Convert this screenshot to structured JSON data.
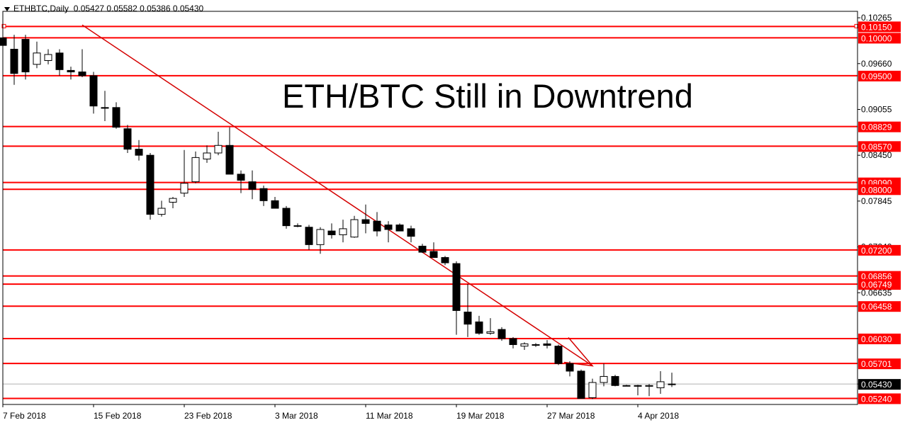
{
  "header": {
    "symbol": "ETHBTC,Daily",
    "ohlc": "0.05427 0.05582 0.05386 0.05430"
  },
  "headline": "ETH/BTC Still in Downtrend",
  "colors": {
    "level": "#ff0000",
    "trendline": "#d40000",
    "candle_up": "#ffffff",
    "candle_down": "#000000",
    "current_price_bg": "#000000"
  },
  "chart_data": {
    "type": "candlestick",
    "instrument": "ETHBTC",
    "timeframe": "Daily",
    "price_axis": {
      "min": 0.0516,
      "max": 0.1035,
      "tick_labels": [
        "0.10265",
        "0.09660",
        "0.09055",
        "0.08450",
        "0.07845",
        "0.07240",
        "0.06635",
        "0.06030",
        "0.05430"
      ]
    },
    "time_axis_labels": [
      "7 Feb 2018",
      "15 Feb 2018",
      "23 Feb 2018",
      "3 Mar 2018",
      "11 Mar 2018",
      "19 Mar 2018",
      "27 Mar 2018",
      "4 Apr 2018"
    ],
    "time_axis_label_index": [
      0,
      8,
      16,
      24,
      32,
      40,
      48,
      56
    ],
    "levels": [
      "0.10150",
      "0.10000",
      "0.09500",
      "0.08829",
      "0.08570",
      "0.08090",
      "0.08000",
      "0.07200",
      "0.06856",
      "0.06749",
      "0.06458",
      "0.06030",
      "0.05701",
      "0.05240"
    ],
    "current_price": "0.05430",
    "candles": [
      {
        "o": 0.1,
        "h": 0.1012,
        "l": 0.0985,
        "c": 0.099
      },
      {
        "o": 0.0985,
        "h": 0.1004,
        "l": 0.0938,
        "c": 0.0953
      },
      {
        "o": 0.0998,
        "h": 0.1004,
        "l": 0.0945,
        "c": 0.0955
      },
      {
        "o": 0.0965,
        "h": 0.0995,
        "l": 0.096,
        "c": 0.098
      },
      {
        "o": 0.097,
        "h": 0.0985,
        "l": 0.0965,
        "c": 0.0978
      },
      {
        "o": 0.098,
        "h": 0.0985,
        "l": 0.095,
        "c": 0.0958
      },
      {
        "o": 0.0957,
        "h": 0.0962,
        "l": 0.0945,
        "c": 0.0955
      },
      {
        "o": 0.0955,
        "h": 0.0985,
        "l": 0.0948,
        "c": 0.095
      },
      {
        "o": 0.095,
        "h": 0.0955,
        "l": 0.09,
        "c": 0.091
      },
      {
        "o": 0.0908,
        "h": 0.093,
        "l": 0.089,
        "c": 0.0907
      },
      {
        "o": 0.0908,
        "h": 0.0915,
        "l": 0.088,
        "c": 0.0882
      },
      {
        "o": 0.088,
        "h": 0.0885,
        "l": 0.0848,
        "c": 0.0853
      },
      {
        "o": 0.0853,
        "h": 0.0865,
        "l": 0.0838,
        "c": 0.0845
      },
      {
        "o": 0.0845,
        "h": 0.0848,
        "l": 0.076,
        "c": 0.0767
      },
      {
        "o": 0.0767,
        "h": 0.0785,
        "l": 0.0764,
        "c": 0.0775
      },
      {
        "o": 0.0783,
        "h": 0.079,
        "l": 0.0775,
        "c": 0.0788
      },
      {
        "o": 0.0795,
        "h": 0.0852,
        "l": 0.079,
        "c": 0.0808
      },
      {
        "o": 0.081,
        "h": 0.085,
        "l": 0.0808,
        "c": 0.0842
      },
      {
        "o": 0.084,
        "h": 0.0858,
        "l": 0.0835,
        "c": 0.0848
      },
      {
        "o": 0.0848,
        "h": 0.0876,
        "l": 0.0845,
        "c": 0.0858
      },
      {
        "o": 0.0858,
        "h": 0.0882,
        "l": 0.082,
        "c": 0.082
      },
      {
        "o": 0.082,
        "h": 0.0825,
        "l": 0.0795,
        "c": 0.0812
      },
      {
        "o": 0.081,
        "h": 0.0825,
        "l": 0.0787,
        "c": 0.08
      },
      {
        "o": 0.0801,
        "h": 0.0805,
        "l": 0.0778,
        "c": 0.0785
      },
      {
        "o": 0.0785,
        "h": 0.079,
        "l": 0.0775,
        "c": 0.0775
      },
      {
        "o": 0.0775,
        "h": 0.0778,
        "l": 0.0748,
        "c": 0.0752
      },
      {
        "o": 0.0752,
        "h": 0.0755,
        "l": 0.075,
        "c": 0.0752
      },
      {
        "o": 0.075,
        "h": 0.0753,
        "l": 0.072,
        "c": 0.0727
      },
      {
        "o": 0.0727,
        "h": 0.075,
        "l": 0.0715,
        "c": 0.0747
      },
      {
        "o": 0.0745,
        "h": 0.0755,
        "l": 0.0735,
        "c": 0.074
      },
      {
        "o": 0.074,
        "h": 0.076,
        "l": 0.073,
        "c": 0.0748
      },
      {
        "o": 0.0737,
        "h": 0.0765,
        "l": 0.0736,
        "c": 0.076
      },
      {
        "o": 0.076,
        "h": 0.078,
        "l": 0.0742,
        "c": 0.0755
      },
      {
        "o": 0.0758,
        "h": 0.077,
        "l": 0.0738,
        "c": 0.0745
      },
      {
        "o": 0.0753,
        "h": 0.0758,
        "l": 0.073,
        "c": 0.0747
      },
      {
        "o": 0.0753,
        "h": 0.0755,
        "l": 0.0745,
        "c": 0.0745
      },
      {
        "o": 0.0748,
        "h": 0.0752,
        "l": 0.073,
        "c": 0.0738
      },
      {
        "o": 0.0725,
        "h": 0.0728,
        "l": 0.0716,
        "c": 0.0717
      },
      {
        "o": 0.0718,
        "h": 0.073,
        "l": 0.071,
        "c": 0.071
      },
      {
        "o": 0.071,
        "h": 0.0712,
        "l": 0.07,
        "c": 0.0703
      },
      {
        "o": 0.0702,
        "h": 0.0705,
        "l": 0.0608,
        "c": 0.064
      },
      {
        "o": 0.0638,
        "h": 0.0675,
        "l": 0.0605,
        "c": 0.0622
      },
      {
        "o": 0.0625,
        "h": 0.0633,
        "l": 0.0608,
        "c": 0.061
      },
      {
        "o": 0.061,
        "h": 0.063,
        "l": 0.0608,
        "c": 0.0612
      },
      {
        "o": 0.0615,
        "h": 0.0618,
        "l": 0.06,
        "c": 0.0603
      },
      {
        "o": 0.0603,
        "h": 0.0605,
        "l": 0.059,
        "c": 0.0595
      },
      {
        "o": 0.0593,
        "h": 0.0598,
        "l": 0.0588,
        "c": 0.0596
      },
      {
        "o": 0.0595,
        "h": 0.0597,
        "l": 0.0592,
        "c": 0.0595
      },
      {
        "o": 0.0596,
        "h": 0.0601,
        "l": 0.059,
        "c": 0.0594
      },
      {
        "o": 0.0593,
        "h": 0.0595,
        "l": 0.0568,
        "c": 0.057
      },
      {
        "o": 0.057,
        "h": 0.0573,
        "l": 0.0553,
        "c": 0.056
      },
      {
        "o": 0.056,
        "h": 0.0562,
        "l": 0.0524,
        "c": 0.0524
      },
      {
        "o": 0.0525,
        "h": 0.055,
        "l": 0.0523,
        "c": 0.0545
      },
      {
        "o": 0.0545,
        "h": 0.057,
        "l": 0.054,
        "c": 0.0553
      },
      {
        "o": 0.0553,
        "h": 0.0555,
        "l": 0.054,
        "c": 0.0541
      },
      {
        "o": 0.0541,
        "h": 0.0542,
        "l": 0.054,
        "c": 0.0541
      },
      {
        "o": 0.0541,
        "h": 0.0542,
        "l": 0.0528,
        "c": 0.054
      },
      {
        "o": 0.054,
        "h": 0.0543,
        "l": 0.0527,
        "c": 0.0541
      },
      {
        "o": 0.0538,
        "h": 0.056,
        "l": 0.053,
        "c": 0.0546
      },
      {
        "o": 0.0543,
        "h": 0.0558,
        "l": 0.0539,
        "c": 0.0543
      }
    ],
    "trendline": {
      "from": {
        "index": 7,
        "price": 0.1017
      },
      "to": {
        "index": 52,
        "price": 0.0567
      }
    },
    "arrow_target": {
      "index": 52,
      "price": 0.0567
    }
  }
}
